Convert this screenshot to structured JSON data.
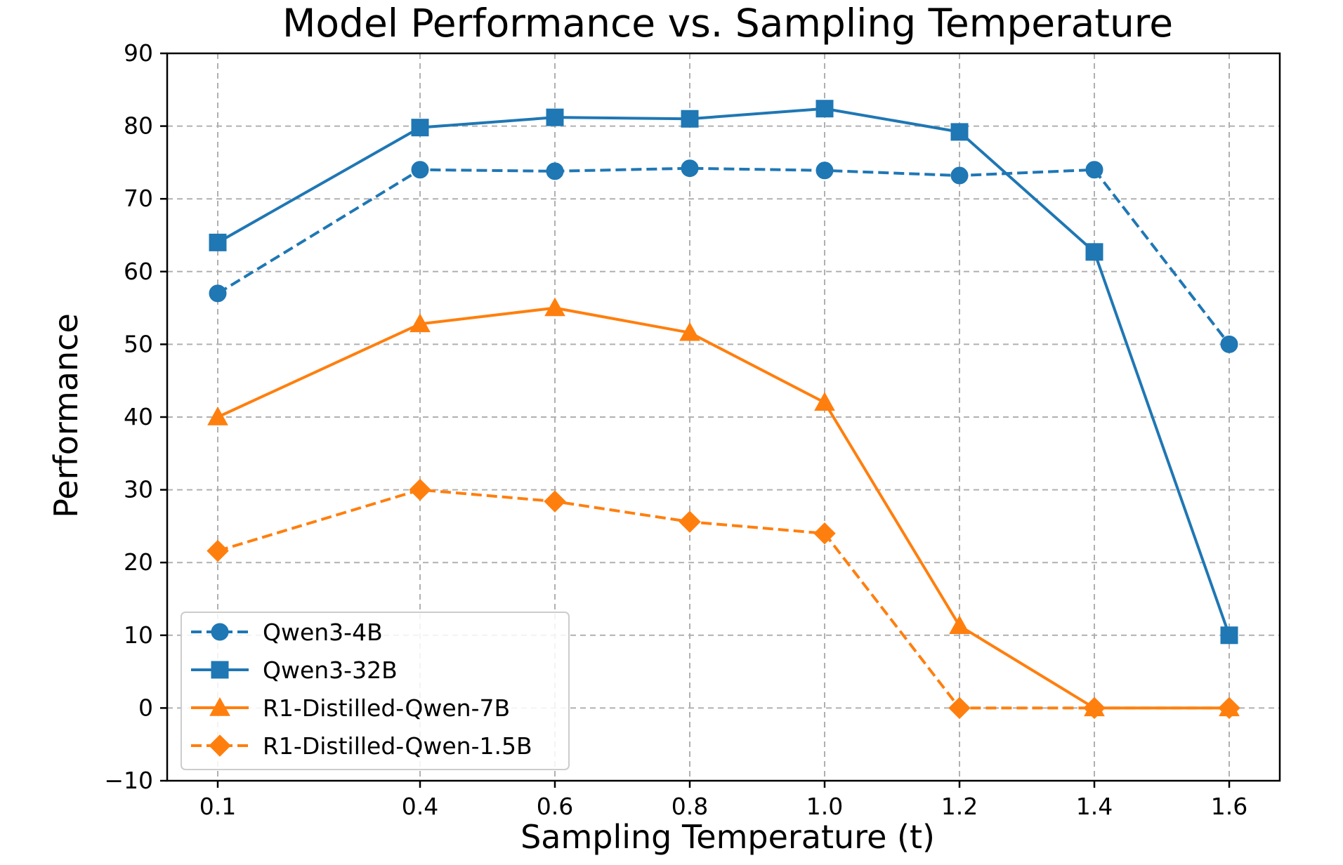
{
  "chart_data": {
    "type": "line",
    "title": "Model Performance vs. Sampling Temperature",
    "xlabel": "Sampling Temperature (t)",
    "ylabel": "Performance",
    "x": [
      0.1,
      0.4,
      0.6,
      0.8,
      1.0,
      1.2,
      1.4,
      1.6
    ],
    "x_tick_labels": [
      "0.1",
      "0.4",
      "0.6",
      "0.8",
      "1.0",
      "1.2",
      "1.4",
      "1.6"
    ],
    "xlim": [
      0.025,
      1.675
    ],
    "ylim": [
      -10,
      90
    ],
    "y_ticks": [
      -10,
      0,
      10,
      20,
      30,
      40,
      50,
      60,
      70,
      80,
      90
    ],
    "y_tick_labels": [
      "−10",
      "0",
      "10",
      "20",
      "30",
      "40",
      "50",
      "60",
      "70",
      "80",
      "90"
    ],
    "grid": true,
    "legend_position": "lower-left",
    "series": [
      {
        "name": "Qwen3-4B",
        "color": "#1f77b4",
        "linestyle": "dashed",
        "marker": "circle",
        "values": [
          57,
          74,
          73.8,
          74.2,
          73.9,
          73.2,
          74,
          50
        ]
      },
      {
        "name": "Qwen3-32B",
        "color": "#1f77b4",
        "linestyle": "solid",
        "marker": "square",
        "values": [
          64,
          79.8,
          81.2,
          81,
          82.4,
          79.2,
          62.7,
          10
        ]
      },
      {
        "name": "R1-Distilled-Qwen-7B",
        "color": "#ff7f0e",
        "linestyle": "solid",
        "marker": "triangle",
        "values": [
          40,
          52.8,
          55,
          51.6,
          42,
          11.3,
          0,
          0
        ]
      },
      {
        "name": "R1-Distilled-Qwen-1.5B",
        "color": "#ff7f0e",
        "linestyle": "dashed",
        "marker": "diamond",
        "values": [
          21.6,
          30,
          28.4,
          25.6,
          24,
          0,
          0,
          0
        ]
      }
    ]
  }
}
